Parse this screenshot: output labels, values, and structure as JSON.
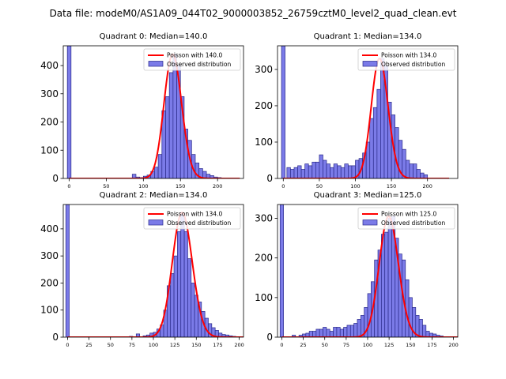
{
  "figure": {
    "suptitle": "Data file: modeM0/AS1A09_044T02_9000003852_26759cztM0_level2_quad_clean.evt"
  },
  "colors": {
    "bar_fill": "#7b7be8",
    "bar_edge": "#2a2a8a",
    "poisson_line": "#ff0000"
  },
  "chart_data": [
    {
      "type": "bar",
      "title": "Quadrant 0: Median=140.0",
      "median": 140.0,
      "legend": [
        "Poisson with 140.0",
        "Observed distribution"
      ],
      "legend_loc": "upper right",
      "xlim": [
        -8,
        235
      ],
      "ylim": [
        0,
        470
      ],
      "xticks": [
        0,
        50,
        100,
        150,
        200
      ],
      "yticks": [
        0,
        100,
        200,
        300,
        400
      ],
      "bin_width": 5,
      "zero_bin": 470,
      "bins": [
        [
          85,
          15
        ],
        [
          90,
          5
        ],
        [
          95,
          3
        ],
        [
          100,
          8
        ],
        [
          105,
          12
        ],
        [
          110,
          25
        ],
        [
          115,
          40
        ],
        [
          120,
          85
        ],
        [
          125,
          240
        ],
        [
          130,
          290
        ],
        [
          135,
          375
        ],
        [
          140,
          440
        ],
        [
          145,
          400
        ],
        [
          150,
          290
        ],
        [
          155,
          175
        ],
        [
          160,
          135
        ],
        [
          165,
          85
        ],
        [
          170,
          55
        ],
        [
          175,
          35
        ],
        [
          180,
          25
        ],
        [
          185,
          15
        ],
        [
          190,
          10
        ],
        [
          195,
          5
        ],
        [
          200,
          3
        ]
      ]
    },
    {
      "type": "bar",
      "title": "Quadrant 1: Median=134.0",
      "median": 134.0,
      "legend": [
        "Poisson with 134.0",
        "Observed distribution"
      ],
      "legend_loc": "upper right",
      "xlim": [
        -8,
        242
      ],
      "ylim": [
        0,
        365
      ],
      "xticks": [
        0,
        50,
        100,
        150,
        200
      ],
      "yticks": [
        0,
        100,
        200,
        300
      ],
      "bin_width": 5,
      "zero_bin": 365,
      "bins": [
        [
          5,
          30
        ],
        [
          10,
          25
        ],
        [
          15,
          30
        ],
        [
          20,
          35
        ],
        [
          25,
          25
        ],
        [
          30,
          40
        ],
        [
          35,
          35
        ],
        [
          40,
          45
        ],
        [
          45,
          45
        ],
        [
          50,
          65
        ],
        [
          55,
          50
        ],
        [
          60,
          40
        ],
        [
          65,
          30
        ],
        [
          70,
          40
        ],
        [
          75,
          35
        ],
        [
          80,
          30
        ],
        [
          85,
          40
        ],
        [
          90,
          35
        ],
        [
          95,
          35
        ],
        [
          100,
          50
        ],
        [
          105,
          55
        ],
        [
          110,
          70
        ],
        [
          115,
          100
        ],
        [
          120,
          165
        ],
        [
          125,
          195
        ],
        [
          130,
          245
        ],
        [
          135,
          330
        ],
        [
          140,
          310
        ],
        [
          145,
          210
        ],
        [
          150,
          175
        ],
        [
          155,
          140
        ],
        [
          160,
          105
        ],
        [
          165,
          80
        ],
        [
          170,
          50
        ],
        [
          175,
          40
        ],
        [
          180,
          40
        ],
        [
          185,
          25
        ],
        [
          190,
          15
        ],
        [
          195,
          10
        ]
      ]
    },
    {
      "type": "bar",
      "title": "Quadrant 2: Median=134.0",
      "median": 134.0,
      "legend": [
        "Poisson with 134.0",
        "Observed distribution"
      ],
      "legend_loc": "upper right",
      "xlim": [
        -5,
        205
      ],
      "ylim": [
        0,
        490
      ],
      "xticks": [
        0,
        25,
        50,
        75,
        100,
        125,
        150,
        175,
        200
      ],
      "yticks": [
        0,
        100,
        200,
        300,
        400
      ],
      "bin_width": 4,
      "zero_bin": 490,
      "bins": [
        [
          72,
          3
        ],
        [
          80,
          12
        ],
        [
          88,
          5
        ],
        [
          92,
          8
        ],
        [
          96,
          15
        ],
        [
          100,
          18
        ],
        [
          104,
          30
        ],
        [
          108,
          45
        ],
        [
          112,
          100
        ],
        [
          116,
          190
        ],
        [
          120,
          235
        ],
        [
          124,
          300
        ],
        [
          128,
          390
        ],
        [
          132,
          460
        ],
        [
          136,
          390
        ],
        [
          140,
          290
        ],
        [
          144,
          200
        ],
        [
          148,
          155
        ],
        [
          152,
          130
        ],
        [
          156,
          95
        ],
        [
          160,
          70
        ],
        [
          164,
          50
        ],
        [
          168,
          35
        ],
        [
          172,
          25
        ],
        [
          176,
          15
        ],
        [
          180,
          10
        ],
        [
          184,
          8
        ],
        [
          188,
          5
        ],
        [
          192,
          3
        ]
      ]
    },
    {
      "type": "bar",
      "title": "Quadrant 3: Median=125.0",
      "median": 125.0,
      "legend": [
        "Poisson with 125.0",
        "Observed distribution"
      ],
      "legend_loc": "upper right",
      "xlim": [
        -5,
        205
      ],
      "ylim": [
        0,
        335
      ],
      "xticks": [
        0,
        25,
        50,
        75,
        100,
        125,
        150,
        175,
        200
      ],
      "yticks": [
        0,
        100,
        200,
        300
      ],
      "bin_width": 4,
      "zero_bin": 335,
      "bins": [
        [
          12,
          5
        ],
        [
          20,
          5
        ],
        [
          24,
          8
        ],
        [
          28,
          10
        ],
        [
          32,
          15
        ],
        [
          36,
          15
        ],
        [
          40,
          20
        ],
        [
          44,
          20
        ],
        [
          48,
          25
        ],
        [
          52,
          20
        ],
        [
          56,
          15
        ],
        [
          60,
          25
        ],
        [
          64,
          25
        ],
        [
          68,
          20
        ],
        [
          72,
          25
        ],
        [
          76,
          30
        ],
        [
          80,
          30
        ],
        [
          84,
          35
        ],
        [
          88,
          45
        ],
        [
          92,
          55
        ],
        [
          96,
          75
        ],
        [
          100,
          110
        ],
        [
          104,
          140
        ],
        [
          108,
          195
        ],
        [
          112,
          220
        ],
        [
          116,
          260
        ],
        [
          120,
          265
        ],
        [
          124,
          300
        ],
        [
          128,
          305
        ],
        [
          132,
          250
        ],
        [
          136,
          210
        ],
        [
          140,
          195
        ],
        [
          144,
          145
        ],
        [
          148,
          100
        ],
        [
          152,
          75
        ],
        [
          156,
          55
        ],
        [
          160,
          45
        ],
        [
          164,
          30
        ],
        [
          168,
          15
        ],
        [
          172,
          10
        ],
        [
          176,
          8
        ],
        [
          180,
          5
        ],
        [
          184,
          3
        ]
      ]
    }
  ]
}
